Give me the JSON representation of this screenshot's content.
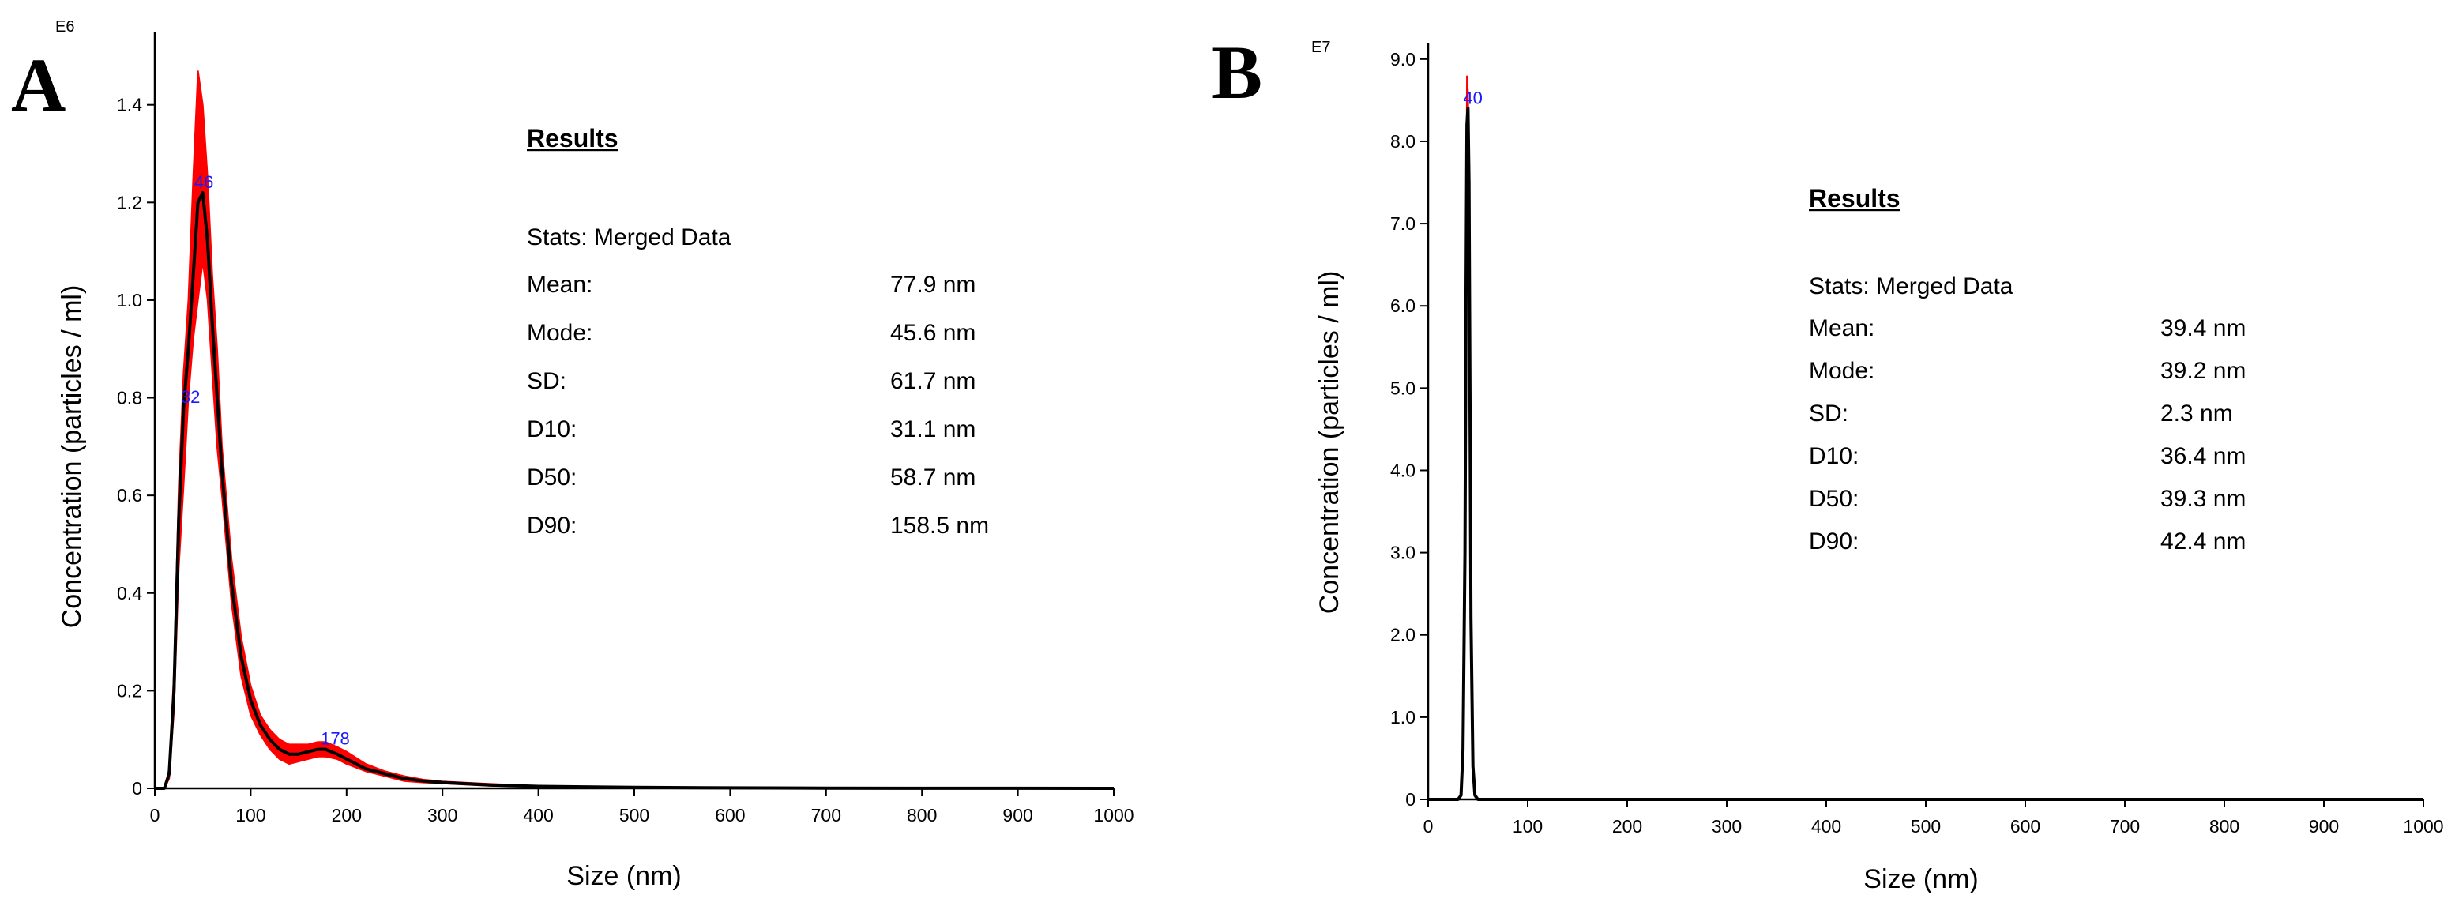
{
  "chart_data": [
    {
      "panel": "A",
      "type": "line",
      "exponent": "E6",
      "xlabel": "Size (nm)",
      "ylabel": "Concentration (particles / ml)",
      "xlim": [
        0,
        1000
      ],
      "ylim": [
        0,
        1.55
      ],
      "xticks": [
        0,
        100,
        200,
        300,
        400,
        500,
        600,
        700,
        800,
        900,
        1000
      ],
      "yticks": [
        0,
        0.2,
        0.4,
        0.6,
        0.8,
        1.0,
        1.2,
        1.4
      ],
      "ytick_labels": [
        "0",
        "0.2",
        "0.4",
        "0.6",
        "0.8",
        "1.0",
        "1.2",
        "1.4"
      ],
      "grid": false,
      "mean_curve": {
        "color": "#000000",
        "x": [
          0,
          10,
          15,
          20,
          25,
          30,
          35,
          40,
          45,
          50,
          55,
          60,
          65,
          70,
          80,
          90,
          100,
          110,
          120,
          130,
          140,
          150,
          160,
          170,
          178,
          190,
          200,
          220,
          240,
          260,
          280,
          300,
          350,
          400,
          500,
          600,
          700,
          800,
          900,
          1000
        ],
        "y": [
          0,
          0.0,
          0.03,
          0.2,
          0.55,
          0.78,
          0.9,
          1.05,
          1.2,
          1.22,
          1.12,
          0.95,
          0.8,
          0.65,
          0.42,
          0.27,
          0.18,
          0.13,
          0.1,
          0.08,
          0.07,
          0.07,
          0.075,
          0.08,
          0.08,
          0.07,
          0.06,
          0.04,
          0.03,
          0.02,
          0.015,
          0.012,
          0.007,
          0.004,
          0.002,
          0.001,
          0.0005,
          0.0002,
          0.0001,
          0.0
        ]
      },
      "error_band": {
        "color": "#ff0000",
        "x": [
          0,
          10,
          15,
          20,
          25,
          30,
          35,
          40,
          45,
          50,
          55,
          60,
          65,
          70,
          80,
          90,
          100,
          110,
          120,
          130,
          140,
          150,
          160,
          170,
          178,
          190,
          200,
          220,
          240,
          260,
          280,
          300,
          350,
          400,
          500,
          600,
          700,
          800,
          900,
          1000
        ],
        "upper": [
          0,
          0.0,
          0.04,
          0.24,
          0.62,
          0.85,
          1.0,
          1.25,
          1.47,
          1.4,
          1.25,
          1.05,
          0.9,
          0.7,
          0.47,
          0.31,
          0.21,
          0.15,
          0.12,
          0.1,
          0.09,
          0.09,
          0.09,
          0.095,
          0.095,
          0.085,
          0.075,
          0.05,
          0.035,
          0.025,
          0.018,
          0.014,
          0.009,
          0.005,
          0.0025,
          0.0012,
          0.0006,
          0.0003,
          0.0001,
          0.0
        ],
        "lower": [
          0,
          0.0,
          0.02,
          0.16,
          0.45,
          0.62,
          0.8,
          0.92,
          1.0,
          1.08,
          1.0,
          0.85,
          0.7,
          0.6,
          0.38,
          0.23,
          0.15,
          0.11,
          0.08,
          0.06,
          0.05,
          0.055,
          0.06,
          0.065,
          0.065,
          0.06,
          0.05,
          0.035,
          0.025,
          0.015,
          0.012,
          0.01,
          0.005,
          0.003,
          0.0015,
          0.0008,
          0.0004,
          0.0001,
          0.0,
          0.0
        ]
      },
      "peak_labels": [
        {
          "text": "46",
          "x": 46,
          "y": 1.22
        },
        {
          "text": "32",
          "x": 32,
          "y": 0.78
        },
        {
          "text": "178",
          "x": 178,
          "y": 0.08
        }
      ],
      "results": {
        "heading": "Results",
        "subtitle": "Stats: Merged Data",
        "rows": [
          {
            "label": "Mean:",
            "value": "77.9 nm"
          },
          {
            "label": "Mode:",
            "value": "45.6 nm"
          },
          {
            "label": "SD:",
            "value": "61.7 nm"
          },
          {
            "label": "D10:",
            "value": "31.1 nm"
          },
          {
            "label": "D50:",
            "value": "58.7 nm"
          },
          {
            "label": "D90:",
            "value": "158.5 nm"
          }
        ]
      }
    },
    {
      "panel": "B",
      "type": "line",
      "exponent": "E7",
      "xlabel": "Size (nm)",
      "ylabel": "Concentration (particles / ml)",
      "xlim": [
        0,
        1000
      ],
      "ylim": [
        0,
        9.2
      ],
      "xticks": [
        0,
        100,
        200,
        300,
        400,
        500,
        600,
        700,
        800,
        900,
        1000
      ],
      "yticks": [
        0,
        1,
        2,
        3,
        4,
        5,
        6,
        7,
        8,
        9
      ],
      "ytick_labels": [
        "0",
        "1.0",
        "2.0",
        "3.0",
        "4.0",
        "5.0",
        "6.0",
        "7.0",
        "8.0",
        "9.0"
      ],
      "grid": false,
      "mean_curve": {
        "color": "#000000",
        "x": [
          0,
          30,
          33,
          35,
          37,
          38,
          39,
          40,
          41,
          42,
          43,
          45,
          47,
          50,
          60,
          1000
        ],
        "y": [
          0,
          0,
          0.05,
          0.6,
          3.0,
          6.0,
          8.2,
          8.4,
          7.5,
          5.0,
          2.2,
          0.4,
          0.05,
          0,
          0,
          0
        ]
      },
      "error_band": {
        "color": "#ff0000",
        "x": [
          0,
          30,
          33,
          35,
          37,
          38,
          39,
          40,
          41,
          42,
          43,
          45,
          47,
          50,
          60,
          1000
        ],
        "upper": [
          0,
          0,
          0.06,
          0.7,
          3.3,
          6.5,
          8.8,
          8.6,
          7.8,
          5.3,
          2.4,
          0.45,
          0.06,
          0,
          0,
          0
        ],
        "lower": [
          0,
          0,
          0.04,
          0.5,
          2.7,
          5.6,
          7.8,
          8.2,
          7.2,
          4.7,
          2.0,
          0.35,
          0.04,
          0,
          0,
          0
        ]
      },
      "peak_labels": [
        {
          "text": "40",
          "x": 40,
          "y": 8.4
        }
      ],
      "results": {
        "heading": "Results",
        "subtitle": "Stats: Merged Data",
        "rows": [
          {
            "label": "Mean:",
            "value": "39.4 nm"
          },
          {
            "label": "Mode:",
            "value": "39.2 nm"
          },
          {
            "label": "SD:",
            "value": "2.3 nm"
          },
          {
            "label": "D10:",
            "value": "36.4 nm"
          },
          {
            "label": "D50:",
            "value": "39.3 nm"
          },
          {
            "label": "D90:",
            "value": "42.4 nm"
          }
        ]
      }
    }
  ]
}
